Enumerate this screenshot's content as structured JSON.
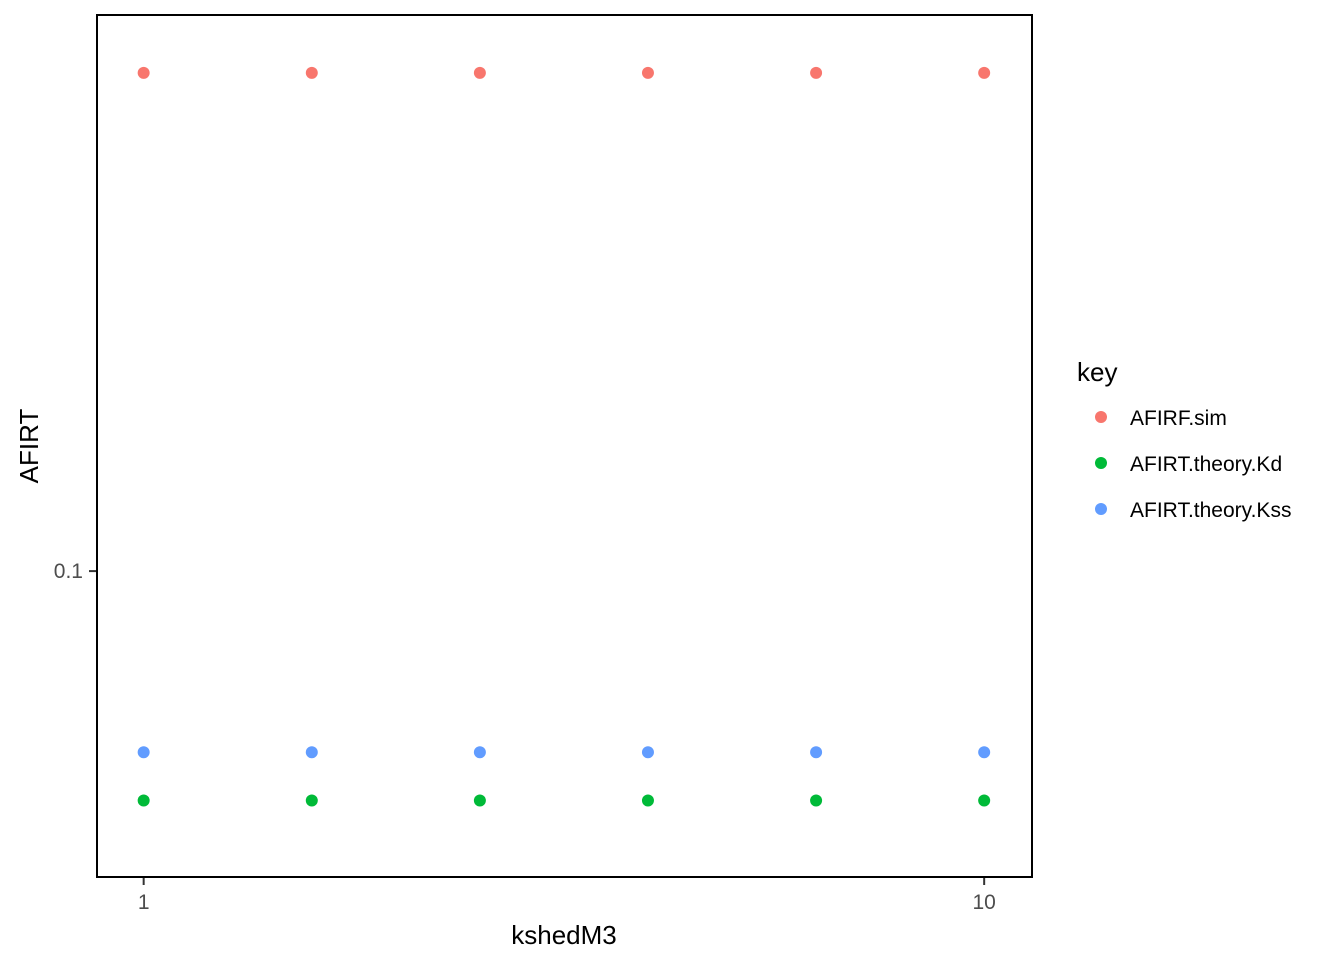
{
  "chart_data": {
    "type": "scatter",
    "title": "",
    "xlabel": "kshedM3",
    "ylabel": "AFIRT",
    "x_scale": "log10",
    "y_scale": "log10",
    "xlim": [
      0.88,
      11.4
    ],
    "ylim": [
      0.0625,
      0.235
    ],
    "x_ticks": [
      {
        "value": 1,
        "label": "1"
      },
      {
        "value": 10,
        "label": "10"
      }
    ],
    "y_ticks": [
      {
        "value": 0.1,
        "label": "0.1"
      }
    ],
    "x": [
      1,
      1.585,
      2.512,
      3.981,
      6.31,
      10
    ],
    "series": [
      {
        "name": "AFIRF.sim",
        "color": "#F8766D",
        "values": [
          0.215,
          0.215,
          0.215,
          0.215,
          0.215,
          0.215
        ]
      },
      {
        "name": "AFIRT.theory.Kd",
        "color": "#00BA38",
        "values": [
          0.0703,
          0.0703,
          0.0703,
          0.0703,
          0.0703,
          0.0703
        ]
      },
      {
        "name": "AFIRT.theory.Kss",
        "color": "#619CFF",
        "values": [
          0.0757,
          0.0757,
          0.0757,
          0.0757,
          0.0757,
          0.0757
        ]
      }
    ],
    "legend": {
      "title": "key",
      "position": "right"
    },
    "grid": false
  }
}
